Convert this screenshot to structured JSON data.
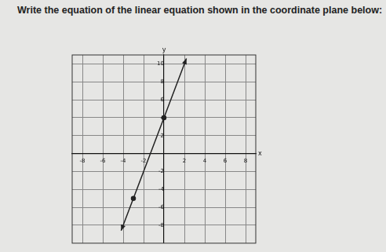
{
  "chart_data": {
    "type": "line",
    "title": "Write the equation of the linear equation shown in the coordinate plane below:",
    "x_label": "x",
    "y_label": "y",
    "x": [
      -4.2,
      -3,
      0,
      2.2
    ],
    "values": [
      -8.6,
      -5,
      4,
      10.6
    ],
    "color": "#222222",
    "marker": "circle",
    "xlim": [
      -9,
      9
    ],
    "xticks": [
      -8,
      -6,
      -4,
      -2,
      2,
      4,
      6,
      8
    ],
    "ylim": [
      -10,
      11
    ],
    "yticks": [
      -8,
      -6,
      -4,
      -2,
      2,
      4,
      6,
      8,
      10
    ],
    "grid": true
  }
}
